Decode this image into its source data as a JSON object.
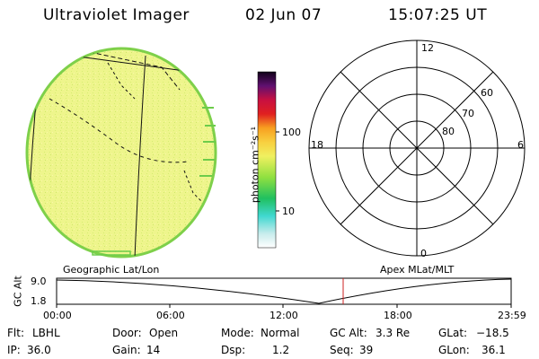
{
  "header": {
    "title": "Ultraviolet Imager",
    "date": "02 Jun 07",
    "time": "15:07:25 UT"
  },
  "colorbar": {
    "label": "photon cm⁻²s⁻¹",
    "ticks": [
      "100",
      "10"
    ]
  },
  "polar": {
    "mlt_labels": {
      "top": "12",
      "left": "18",
      "right": "6",
      "bottom": "0"
    },
    "lat_labels": [
      "60",
      "70",
      "80"
    ]
  },
  "map_labels": {
    "left": "Geographic Lat/Lon",
    "right": "Apex MLat/MLT"
  },
  "altitude_plot": {
    "ylabel": "GC Alt",
    "yticks": [
      "9.0",
      "1.8"
    ],
    "xticks": [
      "00:00",
      "06:00",
      "12:00",
      "18:00",
      "23:59"
    ],
    "current_time_marker": "15:07"
  },
  "footer": {
    "row1": [
      {
        "label": "Flt:",
        "value": "LBHL"
      },
      {
        "label": "Door:",
        "value": "Open"
      },
      {
        "label": "Mode:",
        "value": "Normal"
      },
      {
        "label": "GC Alt:",
        "value": "3.3 Re"
      },
      {
        "label": "GLat:",
        "value": "−18.5"
      }
    ],
    "row2": [
      {
        "label": "IP:",
        "value": "36.0"
      },
      {
        "label": "Gain:",
        "value": "14"
      },
      {
        "label": "Dsp:",
        "value": "1.2"
      },
      {
        "label": "Seq:",
        "value": "39"
      },
      {
        "label": "GLon:",
        "value": "36.1"
      }
    ]
  },
  "colors": {
    "disk": "#ecf58a",
    "disk_edge": "#7ed04a",
    "marker": "#cc2222"
  }
}
